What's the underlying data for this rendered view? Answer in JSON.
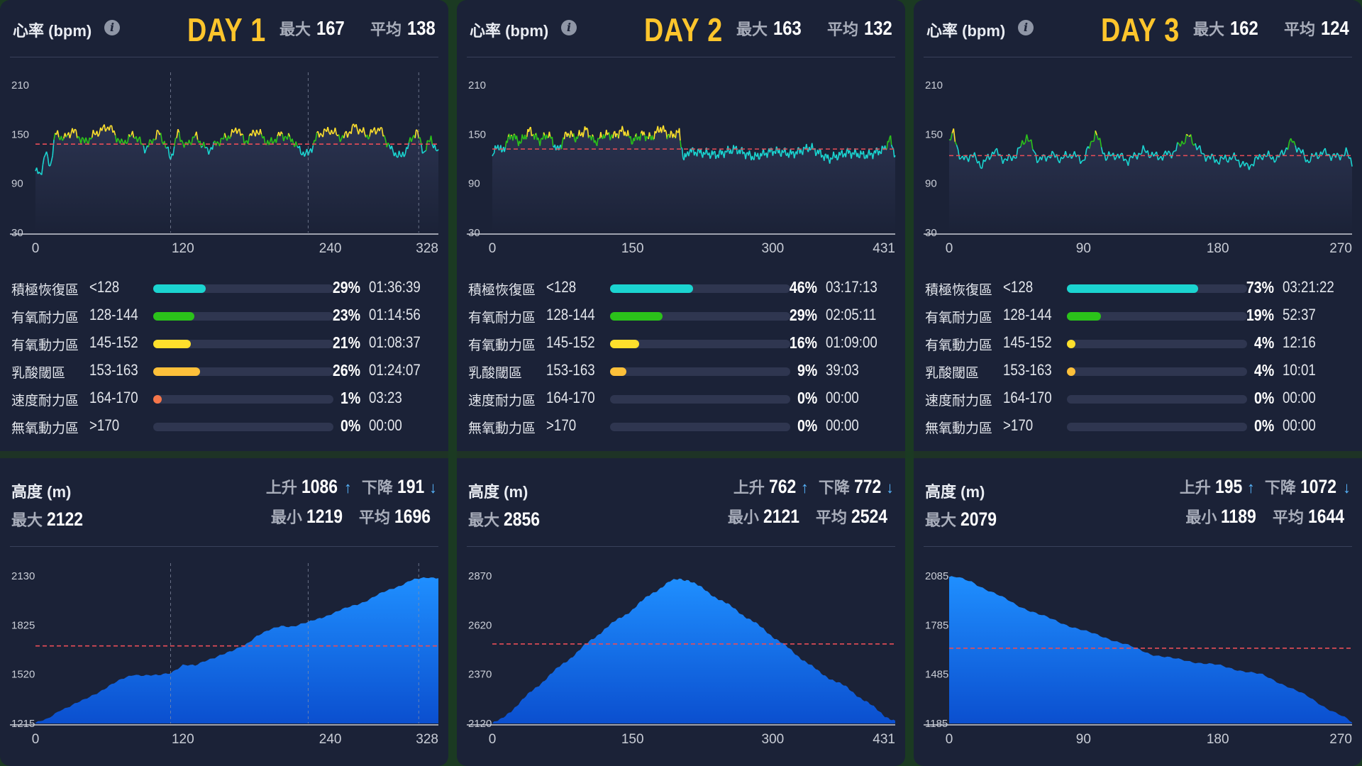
{
  "labels": {
    "hr_title": "心率 (bpm)",
    "info": "i",
    "max": "最大",
    "avg": "平均",
    "alt_title": "高度 (m)",
    "ascent": "上升",
    "descent": "下降",
    "min": "最小",
    "up_arrow": "↑",
    "down_arrow": "↓"
  },
  "colors": {
    "panel": "#1b2237",
    "accent_yellow": "#fec52c",
    "hr_low": "#1bd4d0",
    "hr_mid": "#2bc21a",
    "hr_high": "#fee02c",
    "avg_line": "#e84d57",
    "alt_fill_top": "#1f8fff",
    "alt_fill_bottom": "#0b4fcf"
  },
  "days": [
    {
      "day": "DAY 1",
      "hr_max": "167",
      "hr_avg": "138",
      "zones": [
        {
          "name": "積極恢復區",
          "range": "<128",
          "pct_label": "29%",
          "fraction": 0.29,
          "time": "01:36:39",
          "color": "#1bd4d0"
        },
        {
          "name": "有氧耐力區",
          "range": "128-144",
          "pct_label": "23%",
          "fraction": 0.23,
          "time": "01:14:56",
          "color": "#2bc21a"
        },
        {
          "name": "有氧動力區",
          "range": "145-152",
          "pct_label": "21%",
          "fraction": 0.21,
          "time": "01:08:37",
          "color": "#fee02c"
        },
        {
          "name": "乳酸閾區",
          "range": "153-163",
          "pct_label": "26%",
          "fraction": 0.26,
          "time": "01:24:07",
          "color": "#fdc03a"
        },
        {
          "name": "速度耐力區",
          "range": "164-170",
          "pct_label": "1%",
          "fraction": 0.01,
          "time": "03:23",
          "color": "#f5764a"
        },
        {
          "name": "無氧動力區",
          "range": ">170",
          "pct_label": "0%",
          "fraction": 0,
          "time": "00:00",
          "color": "#e84d57"
        }
      ],
      "alt_ascent": "1086",
      "alt_descent": "191",
      "alt_max": "2122",
      "alt_min": "1219",
      "alt_avg": "1696"
    },
    {
      "day": "DAY 2",
      "hr_max": "163",
      "hr_avg": "132",
      "zones": [
        {
          "name": "積極恢復區",
          "range": "<128",
          "pct_label": "46%",
          "fraction": 0.46,
          "time": "03:17:13",
          "color": "#1bd4d0"
        },
        {
          "name": "有氧耐力區",
          "range": "128-144",
          "pct_label": "29%",
          "fraction": 0.29,
          "time": "02:05:11",
          "color": "#2bc21a"
        },
        {
          "name": "有氧動力區",
          "range": "145-152",
          "pct_label": "16%",
          "fraction": 0.16,
          "time": "01:09:00",
          "color": "#fee02c"
        },
        {
          "name": "乳酸閾區",
          "range": "153-163",
          "pct_label": "9%",
          "fraction": 0.09,
          "time": "39:03",
          "color": "#fdc03a"
        },
        {
          "name": "速度耐力區",
          "range": "164-170",
          "pct_label": "0%",
          "fraction": 0,
          "time": "00:00",
          "color": "#f5764a"
        },
        {
          "name": "無氧動力區",
          "range": ">170",
          "pct_label": "0%",
          "fraction": 0,
          "time": "00:00",
          "color": "#e84d57"
        }
      ],
      "alt_ascent": "762",
      "alt_descent": "772",
      "alt_max": "2856",
      "alt_min": "2121",
      "alt_avg": "2524"
    },
    {
      "day": "DAY 3",
      "hr_max": "162",
      "hr_avg": "124",
      "zones": [
        {
          "name": "積極恢復區",
          "range": "<128",
          "pct_label": "73%",
          "fraction": 0.73,
          "time": "03:21:22",
          "color": "#1bd4d0"
        },
        {
          "name": "有氧耐力區",
          "range": "128-144",
          "pct_label": "19%",
          "fraction": 0.19,
          "time": "52:37",
          "color": "#2bc21a"
        },
        {
          "name": "有氧動力區",
          "range": "145-152",
          "pct_label": "4%",
          "fraction": 0.04,
          "time": "12:16",
          "color": "#fee02c"
        },
        {
          "name": "乳酸閾區",
          "range": "153-163",
          "pct_label": "4%",
          "fraction": 0.04,
          "time": "10:01",
          "color": "#fdc03a"
        },
        {
          "name": "速度耐力區",
          "range": "164-170",
          "pct_label": "0%",
          "fraction": 0,
          "time": "00:00",
          "color": "#f5764a"
        },
        {
          "name": "無氧動力區",
          "range": ">170",
          "pct_label": "0%",
          "fraction": 0,
          "time": "00:00",
          "color": "#e84d57"
        }
      ],
      "alt_ascent": "195",
      "alt_descent": "1072",
      "alt_max": "2079",
      "alt_min": "1189",
      "alt_avg": "1644"
    }
  ],
  "chart_data": [
    {
      "type": "line",
      "chart": "heart_rate",
      "day": "DAY 1",
      "ylim": [
        30,
        210
      ],
      "yticks": [
        "210",
        "150",
        "90",
        "30"
      ],
      "xlim": [
        0,
        328
      ],
      "xticks": [
        "0",
        "120",
        "240",
        "328"
      ],
      "avg_line": 138,
      "markers": [
        110,
        222,
        312
      ],
      "x": [
        0,
        4,
        8,
        12,
        16,
        24,
        30,
        40,
        50,
        60,
        70,
        80,
        90,
        100,
        105,
        110,
        116,
        122,
        130,
        140,
        150,
        160,
        165,
        170,
        180,
        190,
        200,
        210,
        215,
        222,
        230,
        240,
        250,
        260,
        270,
        280,
        290,
        298,
        305,
        310,
        316,
        322,
        328
      ],
      "y": [
        105,
        100,
        128,
        110,
        150,
        145,
        155,
        140,
        152,
        160,
        138,
        150,
        132,
        152,
        140,
        120,
        152,
        135,
        148,
        130,
        142,
        150,
        158,
        140,
        155,
        138,
        150,
        142,
        130,
        125,
        150,
        155,
        145,
        160,
        148,
        158,
        130,
        122,
        140,
        155,
        128,
        145,
        125
      ]
    },
    {
      "type": "line",
      "chart": "heart_rate",
      "day": "DAY 2",
      "ylim": [
        30,
        210
      ],
      "yticks": [
        "210",
        "150",
        "90",
        "30"
      ],
      "xlim": [
        0,
        431
      ],
      "xticks": [
        "0",
        "150",
        "300",
        "431"
      ],
      "avg_line": 132,
      "markers": [],
      "x": [
        0,
        5,
        10,
        20,
        30,
        40,
        50,
        60,
        70,
        80,
        90,
        100,
        110,
        120,
        130,
        140,
        150,
        160,
        170,
        180,
        190,
        200,
        205,
        210,
        220,
        240,
        260,
        280,
        300,
        320,
        340,
        360,
        380,
        400,
        420,
        425,
        431
      ],
      "y": [
        120,
        138,
        128,
        150,
        140,
        155,
        142,
        150,
        130,
        152,
        145,
        156,
        140,
        150,
        148,
        155,
        142,
        150,
        145,
        158,
        148,
        152,
        118,
        130,
        128,
        125,
        132,
        122,
        130,
        126,
        134,
        120,
        128,
        124,
        132,
        145,
        125
      ]
    },
    {
      "type": "line",
      "chart": "heart_rate",
      "day": "DAY 3",
      "ylim": [
        30,
        210
      ],
      "yticks": [
        "210",
        "150",
        "90",
        "30"
      ],
      "xlim": [
        0,
        270
      ],
      "xticks": [
        "0",
        "90",
        "180",
        "270"
      ],
      "avg_line": 124,
      "markers": [],
      "x": [
        0,
        3,
        8,
        15,
        22,
        30,
        38,
        45,
        52,
        60,
        68,
        75,
        82,
        90,
        98,
        105,
        112,
        120,
        130,
        140,
        150,
        160,
        165,
        170,
        180,
        190,
        200,
        210,
        220,
        230,
        240,
        250,
        260,
        266,
        270
      ],
      "y": [
        140,
        152,
        118,
        125,
        112,
        130,
        118,
        125,
        148,
        118,
        125,
        120,
        126,
        118,
        152,
        122,
        125,
        118,
        130,
        122,
        128,
        148,
        138,
        125,
        118,
        122,
        110,
        125,
        120,
        142,
        118,
        128,
        122,
        128,
        115
      ]
    },
    {
      "type": "area",
      "chart": "altitude",
      "day": "DAY 1",
      "ylim": [
        1215,
        2130
      ],
      "yticks": [
        "2130",
        "1825",
        "1520",
        "1215"
      ],
      "xlim": [
        0,
        328
      ],
      "xticks": [
        "0",
        "120",
        "240",
        "328"
      ],
      "avg_line": 1696,
      "markers": [
        110,
        222,
        312
      ],
      "x": [
        0,
        10,
        20,
        40,
        60,
        80,
        100,
        110,
        120,
        130,
        140,
        150,
        160,
        170,
        180,
        190,
        200,
        210,
        222,
        235,
        250,
        270,
        290,
        305,
        312,
        320,
        328
      ],
      "y": [
        1219,
        1240,
        1300,
        1360,
        1450,
        1520,
        1510,
        1530,
        1580,
        1570,
        1610,
        1640,
        1660,
        1700,
        1760,
        1790,
        1820,
        1820,
        1840,
        1880,
        1920,
        1980,
        2050,
        2100,
        2110,
        2122,
        2122
      ]
    },
    {
      "type": "area",
      "chart": "altitude",
      "day": "DAY 2",
      "ylim": [
        2120,
        2870
      ],
      "yticks": [
        "2870",
        "2620",
        "2370",
        "2120"
      ],
      "xlim": [
        0,
        431
      ],
      "xticks": [
        "0",
        "150",
        "300",
        "431"
      ],
      "avg_line": 2524,
      "markers": [],
      "x": [
        0,
        10,
        30,
        60,
        90,
        120,
        150,
        170,
        190,
        200,
        210,
        230,
        260,
        290,
        320,
        350,
        380,
        400,
        420,
        431
      ],
      "y": [
        2121,
        2140,
        2230,
        2360,
        2480,
        2600,
        2700,
        2780,
        2840,
        2856,
        2850,
        2790,
        2700,
        2600,
        2490,
        2380,
        2300,
        2230,
        2160,
        2130
      ]
    },
    {
      "type": "area",
      "chart": "altitude",
      "day": "DAY 3",
      "ylim": [
        1185,
        2085
      ],
      "yticks": [
        "2085",
        "1785",
        "1485",
        "1185"
      ],
      "xlim": [
        0,
        270
      ],
      "xticks": [
        "0",
        "90",
        "180",
        "270"
      ],
      "avg_line": 1644,
      "markers": [],
      "x": [
        0,
        5,
        15,
        30,
        45,
        60,
        75,
        90,
        105,
        120,
        135,
        150,
        165,
        180,
        195,
        210,
        225,
        240,
        255,
        265,
        270
      ],
      "y": [
        2079,
        2075,
        2050,
        1980,
        1910,
        1850,
        1800,
        1750,
        1710,
        1660,
        1610,
        1580,
        1560,
        1540,
        1510,
        1480,
        1420,
        1350,
        1270,
        1220,
        1189
      ]
    }
  ]
}
